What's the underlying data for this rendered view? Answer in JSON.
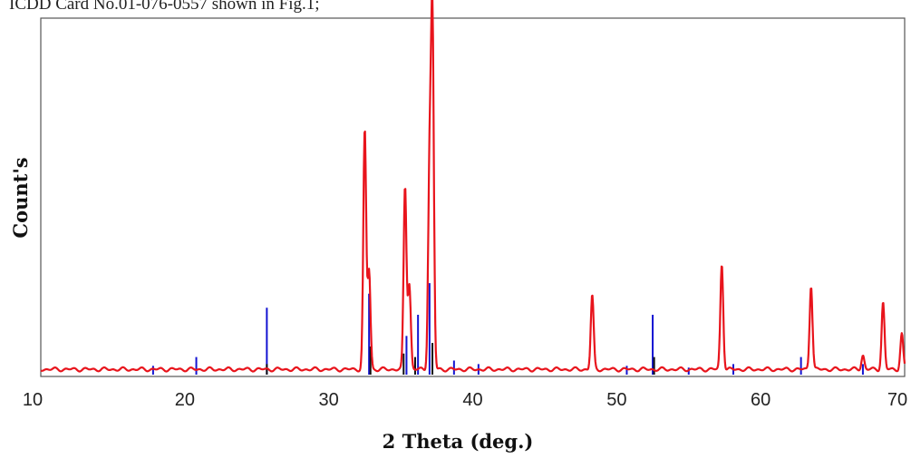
{
  "caption": "ICDD  Card  No.01-076-0557  shown  in  Fig.1;",
  "colors": {
    "pattern": "#e8141c",
    "reference_blue": "#1414d2",
    "reference_black": "#111111",
    "frame": "#555555"
  },
  "chart_data": {
    "type": "line",
    "xlabel": "2 Theta (deg.)",
    "ylabel": "Count's",
    "xlim": [
      10,
      70
    ],
    "ylim": [
      0,
      100
    ],
    "x_ticks": [
      10,
      20,
      30,
      40,
      50,
      60,
      70
    ],
    "tick_labels": [
      "10",
      "20",
      "30",
      "40",
      "50",
      "60",
      "70"
    ],
    "grid": false,
    "series": [
      {
        "kind": "xrd_pattern",
        "baseline": 1.5,
        "peaks": [
          {
            "x": 32.5,
            "y": 68
          },
          {
            "x": 32.8,
            "y": 28
          },
          {
            "x": 35.3,
            "y": 52
          },
          {
            "x": 35.6,
            "y": 24
          },
          {
            "x": 37.2,
            "y": 99
          },
          {
            "x": 37.0,
            "y": 55
          },
          {
            "x": 48.3,
            "y": 21
          },
          {
            "x": 57.3,
            "y": 30
          },
          {
            "x": 63.5,
            "y": 24
          },
          {
            "x": 67.1,
            "y": 4
          },
          {
            "x": 68.5,
            "y": 19
          },
          {
            "x": 69.8,
            "y": 10
          }
        ]
      },
      {
        "kind": "reference_lines",
        "lines": [
          {
            "x": 25.7,
            "y": 19,
            "color": "blue"
          },
          {
            "x": 32.8,
            "y": 23,
            "color": "blue"
          },
          {
            "x": 35.4,
            "y": 11,
            "color": "blue"
          },
          {
            "x": 36.2,
            "y": 17,
            "color": "blue"
          },
          {
            "x": 37.0,
            "y": 26,
            "color": "blue"
          },
          {
            "x": 52.5,
            "y": 17,
            "color": "blue"
          },
          {
            "x": 20.8,
            "y": 5,
            "color": "blue"
          },
          {
            "x": 17.8,
            "y": 2.5,
            "color": "blue"
          },
          {
            "x": 38.7,
            "y": 4,
            "color": "blue"
          },
          {
            "x": 40.4,
            "y": 3,
            "color": "blue"
          },
          {
            "x": 62.8,
            "y": 5,
            "color": "blue"
          },
          {
            "x": 58.1,
            "y": 3,
            "color": "blue"
          },
          {
            "x": 55.0,
            "y": 2,
            "color": "blue"
          },
          {
            "x": 50.7,
            "y": 2.5,
            "color": "blue"
          },
          {
            "x": 67.1,
            "y": 3,
            "color": "blue"
          },
          {
            "x": 32.9,
            "y": 8,
            "color": "black"
          },
          {
            "x": 35.2,
            "y": 6,
            "color": "black"
          },
          {
            "x": 36.0,
            "y": 5,
            "color": "black"
          },
          {
            "x": 37.2,
            "y": 9,
            "color": "black"
          },
          {
            "x": 52.6,
            "y": 5,
            "color": "black"
          },
          {
            "x": 25.7,
            "y": 3,
            "color": "black"
          }
        ]
      }
    ]
  }
}
